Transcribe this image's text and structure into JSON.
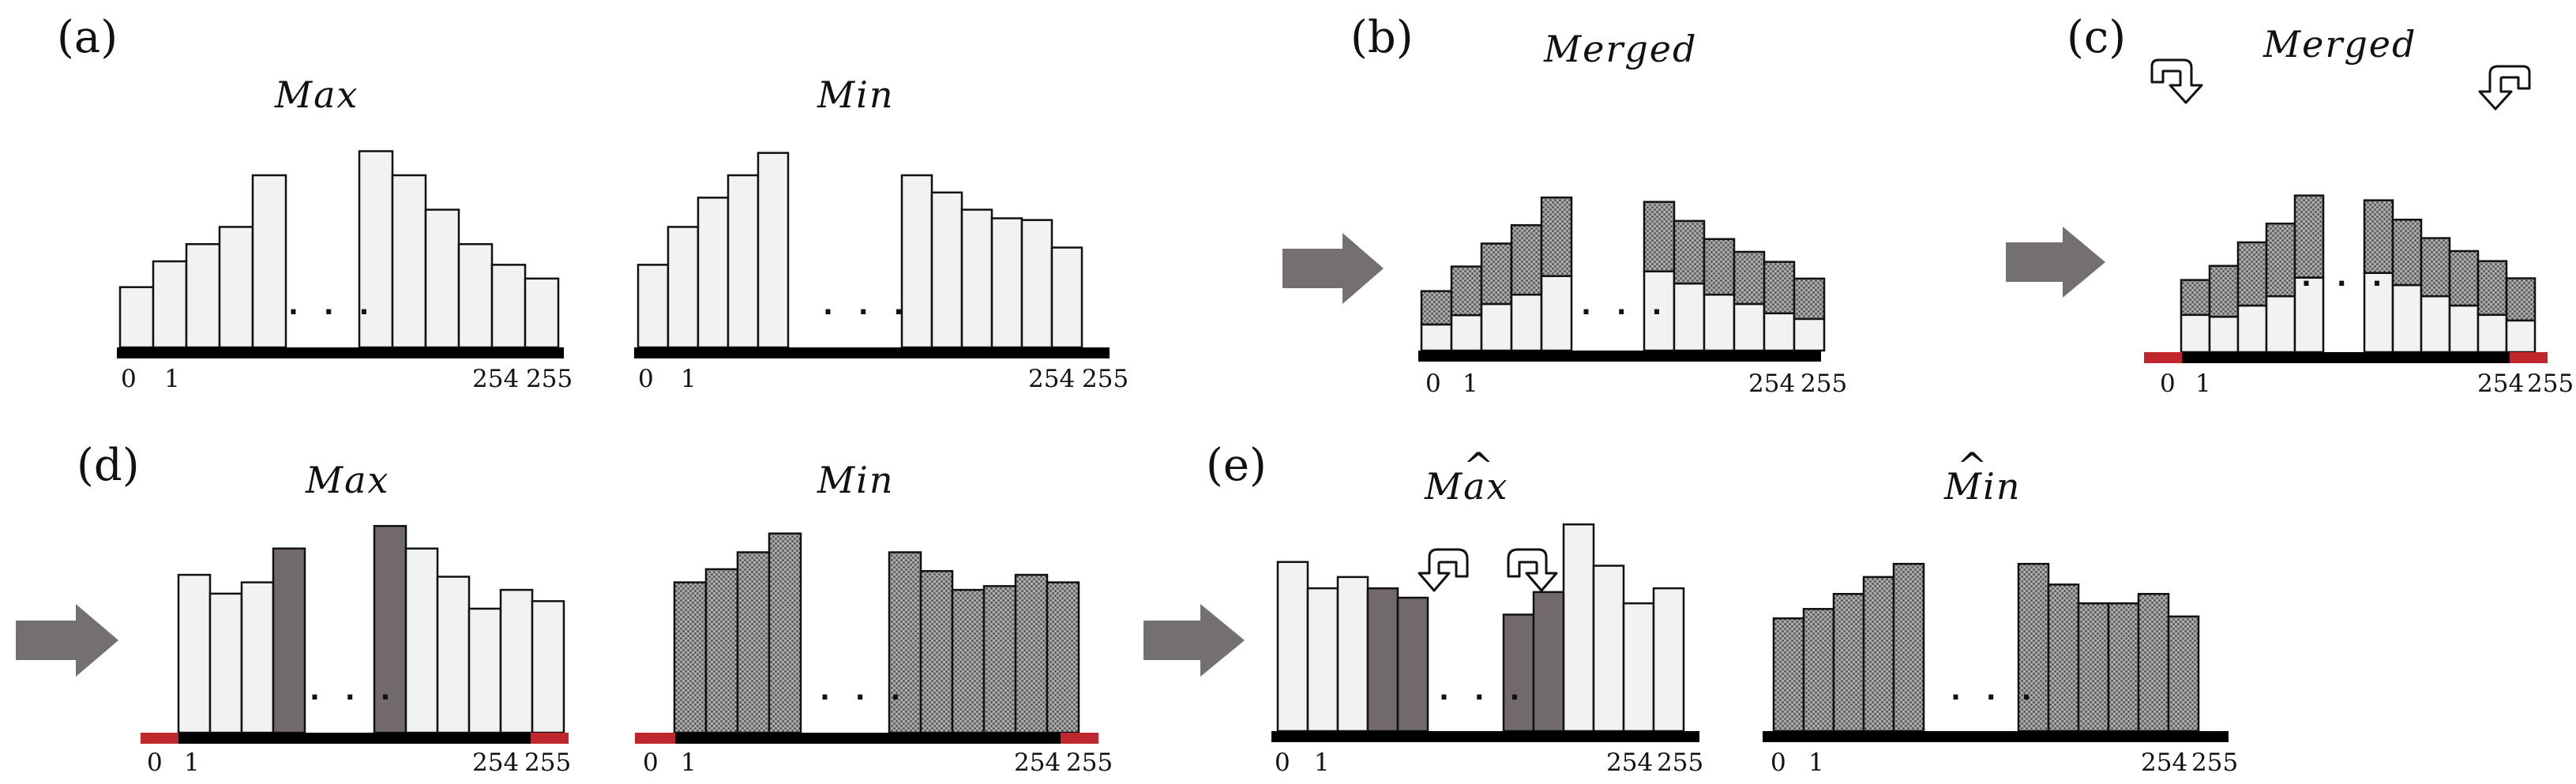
{
  "colors": {
    "light_bar": "#f2f2f2",
    "dark_bar": "#726a6a",
    "hatched_base": "#8d8d8d",
    "baseline": "#000000",
    "overflow_marker": "#c0272d",
    "arrow": "#757070"
  },
  "panels": {
    "a": {
      "label": "(a)",
      "max_title": "Max",
      "min_title": "Min",
      "max_bars": [
        0.35,
        0.5,
        0.6,
        0.7,
        1.0,
        1.14,
        1.0,
        0.8,
        0.6,
        0.48,
        0.4
      ],
      "min_bars": [
        0.48,
        0.7,
        0.87,
        1.0,
        1.13,
        1.0,
        0.9,
        0.8,
        0.75,
        0.74,
        0.58
      ],
      "ellipsis": ". . .",
      "ticks": [
        "0",
        "1",
        "254",
        "255"
      ]
    },
    "b": {
      "label": "(b)",
      "title": "Merged",
      "stacks_light": [
        0.28,
        0.38,
        0.5,
        0.6,
        0.8,
        0.85,
        0.72,
        0.6,
        0.5,
        0.4,
        0.34
      ],
      "stacks_hatched": [
        0.48,
        0.7,
        0.87,
        1.0,
        1.13,
        1.0,
        0.9,
        0.8,
        0.75,
        0.74,
        0.58
      ],
      "ellipsis": ". . .",
      "ticks": [
        "0",
        "1",
        "254",
        "255"
      ]
    },
    "c": {
      "label": "(c)",
      "title": "Merged",
      "stacks_light": [
        0.4,
        0.38,
        0.5,
        0.6,
        0.8,
        0.85,
        0.72,
        0.6,
        0.5,
        0.4,
        0.34
      ],
      "stacks_hatched": [
        0.48,
        0.7,
        0.87,
        1.0,
        1.13,
        1.0,
        0.9,
        0.8,
        0.75,
        0.74,
        0.58
      ],
      "ellipsis": ". . .",
      "ticks": [
        "0",
        "1",
        "254",
        "255"
      ]
    },
    "d": {
      "label": "(d)",
      "max_title": "Max",
      "min_title": "Min",
      "max_bars": [
        0.84,
        0.74,
        0.8,
        0.98,
        1.1,
        0.98,
        0.83,
        0.66,
        0.76,
        0.7
      ],
      "max_dark_indices": [
        3,
        4
      ],
      "min_bars": [
        0.8,
        0.87,
        0.96,
        1.06,
        0.96,
        0.86,
        0.76,
        0.78,
        0.84,
        0.8
      ],
      "ellipsis": ". . .",
      "ticks": [
        "0",
        "1",
        "254",
        "255"
      ]
    },
    "e": {
      "label": "(e)",
      "max_title": "Max",
      "max_hat": "^",
      "min_title": "Min",
      "min_hat": "^",
      "max_bars": [
        0.9,
        0.76,
        0.82,
        0.76,
        0.71,
        0.62,
        0.74,
        1.1,
        0.88,
        0.68,
        0.76
      ],
      "max_dark_indices": [
        3,
        4,
        5,
        6
      ],
      "min_bars": [
        0.6,
        0.65,
        0.73,
        0.82,
        0.89,
        0.89,
        0.78,
        0.68,
        0.68,
        0.73,
        0.61
      ],
      "ellipsis": ". . .",
      "ticks": [
        "0",
        "1",
        "254",
        "255"
      ]
    }
  }
}
